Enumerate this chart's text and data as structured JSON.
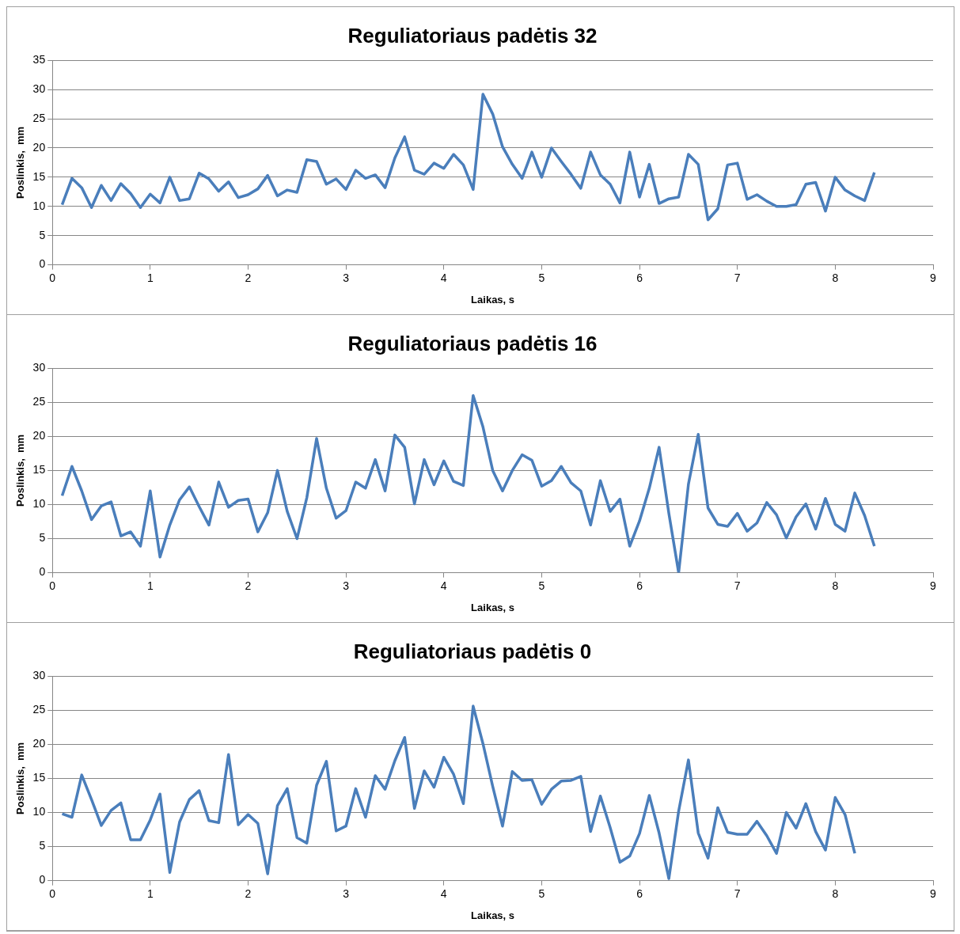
{
  "chart_data": [
    {
      "type": "line",
      "title": "Reguliatoriaus padėtis 32",
      "xlabel": "Laikas, s",
      "ylabel": "Poslinkis,  mm",
      "color": "#4a7ebb",
      "marker": "none",
      "grid": "y",
      "xlim": [
        0,
        9
      ],
      "xticks": [
        0,
        1,
        2,
        3,
        4,
        5,
        6,
        7,
        8,
        9
      ],
      "ylim": [
        0,
        35
      ],
      "yticks": [
        0,
        5,
        10,
        15,
        20,
        25,
        30,
        35
      ],
      "x": [
        0.1,
        0.2,
        0.3,
        0.4,
        0.5,
        0.6,
        0.7,
        0.8,
        0.9,
        1.0,
        1.1,
        1.2,
        1.3,
        1.4,
        1.5,
        1.6,
        1.7,
        1.8,
        1.9,
        2.0,
        2.1,
        2.2,
        2.3,
        2.4,
        2.5,
        2.6,
        2.7,
        2.8,
        2.9,
        3.0,
        3.1,
        3.2,
        3.3,
        3.4,
        3.5,
        3.6,
        3.7,
        3.8,
        3.9,
        4.0,
        4.1,
        4.2,
        4.3,
        4.4,
        4.5,
        4.6,
        4.7,
        4.8,
        4.9,
        5.0,
        5.1,
        5.2,
        5.3,
        5.4,
        5.5,
        5.6,
        5.7,
        5.8,
        5.9,
        6.0,
        6.1,
        6.2,
        6.3,
        6.4,
        6.5,
        6.6,
        6.7,
        6.8,
        6.9,
        7.0,
        7.1,
        7.2,
        7.3,
        7.4,
        7.5,
        7.6,
        7.7,
        7.8,
        7.9,
        8.0,
        8.1,
        8.2,
        8.3,
        8.4
      ],
      "values": [
        10.3,
        14.8,
        13.2,
        9.8,
        13.6,
        11,
        13.9,
        12.2,
        9.8,
        12.1,
        10.6,
        15,
        11,
        11.3,
        15.7,
        14.7,
        12.6,
        14.2,
        11.5,
        12,
        13,
        15.3,
        11.8,
        12.8,
        12.4,
        18,
        17.7,
        13.8,
        14.7,
        12.9,
        16.2,
        14.8,
        15.4,
        13.2,
        18.3,
        21.9,
        16.2,
        15.5,
        17.4,
        16.5,
        18.9,
        17.1,
        12.9,
        29.2,
        25.8,
        20.2,
        17.2,
        14.8,
        19.3,
        15,
        20,
        17.7,
        15.5,
        13.1,
        19.3,
        15.4,
        13.8,
        10.6,
        19.3,
        11.6,
        17.2,
        10.5,
        11.3,
        11.6,
        18.9,
        17.2,
        7.7,
        9.6,
        17.1,
        17.4,
        11.2,
        12,
        10.9,
        10,
        10,
        10.3,
        13.8,
        14.1,
        9.2,
        15,
        12.8,
        11.8,
        11,
        15.8
      ]
    },
    {
      "type": "line",
      "title": "Reguliatoriaus padėtis 16",
      "xlabel": "Laikas, s",
      "ylabel": "Poslinkis,  mm",
      "color": "#4a7ebb",
      "marker": "none",
      "grid": "y",
      "xlim": [
        0,
        9
      ],
      "xticks": [
        0,
        1,
        2,
        3,
        4,
        5,
        6,
        7,
        8,
        9
      ],
      "ylim": [
        0,
        30
      ],
      "yticks": [
        0,
        5,
        10,
        15,
        20,
        25,
        30
      ],
      "x": [
        0.1,
        0.2,
        0.3,
        0.4,
        0.5,
        0.6,
        0.7,
        0.8,
        0.9,
        1.0,
        1.1,
        1.2,
        1.3,
        1.4,
        1.5,
        1.6,
        1.7,
        1.8,
        1.9,
        2.0,
        2.1,
        2.2,
        2.3,
        2.4,
        2.5,
        2.6,
        2.7,
        2.8,
        2.9,
        3.0,
        3.1,
        3.2,
        3.3,
        3.4,
        3.5,
        3.6,
        3.7,
        3.8,
        3.9,
        4.0,
        4.1,
        4.2,
        4.3,
        4.4,
        4.5,
        4.6,
        4.7,
        4.8,
        4.9,
        5.0,
        5.1,
        5.2,
        5.3,
        5.4,
        5.5,
        5.6,
        5.7,
        5.8,
        5.9,
        6.0,
        6.1,
        6.2,
        6.3,
        6.4,
        6.5,
        6.6,
        6.7,
        6.8,
        6.9,
        7.0,
        7.1,
        7.2,
        7.3,
        7.4,
        7.5,
        7.6,
        7.7,
        7.8,
        7.9,
        8.0,
        8.1,
        8.2,
        8.3,
        8.4
      ],
      "values": [
        11.3,
        15.6,
        12,
        7.8,
        9.8,
        10.4,
        5.4,
        6,
        3.9,
        12,
        2.3,
        7,
        10.7,
        12.6,
        9.7,
        7,
        13.3,
        9.6,
        10.6,
        10.8,
        6,
        8.8,
        15,
        9,
        5,
        11,
        19.7,
        12.4,
        8,
        9.1,
        13.3,
        12.4,
        16.6,
        12,
        20.2,
        18.4,
        10.1,
        16.6,
        12.9,
        16.4,
        13.4,
        12.8,
        26,
        21.4,
        15,
        12,
        15,
        17.3,
        16.5,
        12.7,
        13.5,
        15.6,
        13.2,
        12,
        7,
        13.5,
        9,
        10.8,
        3.9,
        7.6,
        12.4,
        18.4,
        8.7,
        0,
        13,
        20.3,
        9.5,
        7.1,
        6.8,
        8.7,
        6.1,
        7.3,
        10.3,
        8.5,
        5.1,
        8.2,
        10.1,
        6.4,
        10.9,
        7.1,
        6.1,
        11.7,
        8.4,
        3.9
      ]
    },
    {
      "type": "line",
      "title": "Reguliatoriaus padėtis 0",
      "xlabel": "Laikas, s",
      "ylabel": "Poslinkis,  mm",
      "color": "#4a7ebb",
      "marker": "none",
      "grid": "y",
      "xlim": [
        0,
        9
      ],
      "xticks": [
        0,
        1,
        2,
        3,
        4,
        5,
        6,
        7,
        8,
        9
      ],
      "ylim": [
        0,
        30
      ],
      "yticks": [
        0,
        5,
        10,
        15,
        20,
        25,
        30
      ],
      "x": [
        0.1,
        0.2,
        0.3,
        0.4,
        0.5,
        0.6,
        0.7,
        0.8,
        0.9,
        1.0,
        1.1,
        1.2,
        1.3,
        1.4,
        1.5,
        1.6,
        1.7,
        1.8,
        1.9,
        2.0,
        2.1,
        2.2,
        2.3,
        2.4,
        2.5,
        2.6,
        2.7,
        2.8,
        2.9,
        3.0,
        3.1,
        3.2,
        3.3,
        3.4,
        3.5,
        3.6,
        3.7,
        3.8,
        3.9,
        4.0,
        4.1,
        4.2,
        4.3,
        4.4,
        4.5,
        4.6,
        4.7,
        4.8,
        4.9,
        5.0,
        5.1,
        5.2,
        5.3,
        5.4,
        5.5,
        5.6,
        5.7,
        5.8,
        5.9,
        6.0,
        6.1,
        6.2,
        6.3,
        6.4,
        6.5,
        6.6,
        6.7,
        6.8,
        6.9,
        7.0,
        7.1,
        7.2,
        7.3,
        7.4,
        7.5,
        7.6,
        7.7,
        7.8,
        7.9,
        8.0,
        8.1,
        8.2
      ],
      "values": [
        9.8,
        9.3,
        15.5,
        11.9,
        8.1,
        10.3,
        11.4,
        6,
        6,
        8.9,
        12.7,
        1.2,
        8.6,
        11.9,
        13.2,
        8.8,
        8.5,
        18.5,
        8.2,
        9.7,
        8.4,
        1,
        11,
        13.5,
        6.3,
        5.5,
        14,
        17.5,
        7.3,
        8,
        13.5,
        9.3,
        15.4,
        13.4,
        17.6,
        21,
        10.6,
        16.1,
        13.7,
        18.1,
        15.6,
        11.3,
        25.6,
        20.1,
        13.8,
        8,
        16,
        14.7,
        14.8,
        11.2,
        13.4,
        14.6,
        14.7,
        15.3,
        7.2,
        12.4,
        7.8,
        2.7,
        3.6,
        6.9,
        12.5,
        7,
        0.3,
        10.2,
        17.7,
        7,
        3.3,
        10.7,
        7.1,
        6.8,
        6.8,
        8.7,
        6.6,
        4,
        10,
        7.7,
        11.3,
        7.2,
        4.5,
        12.2,
        9.7,
        4
      ]
    }
  ]
}
